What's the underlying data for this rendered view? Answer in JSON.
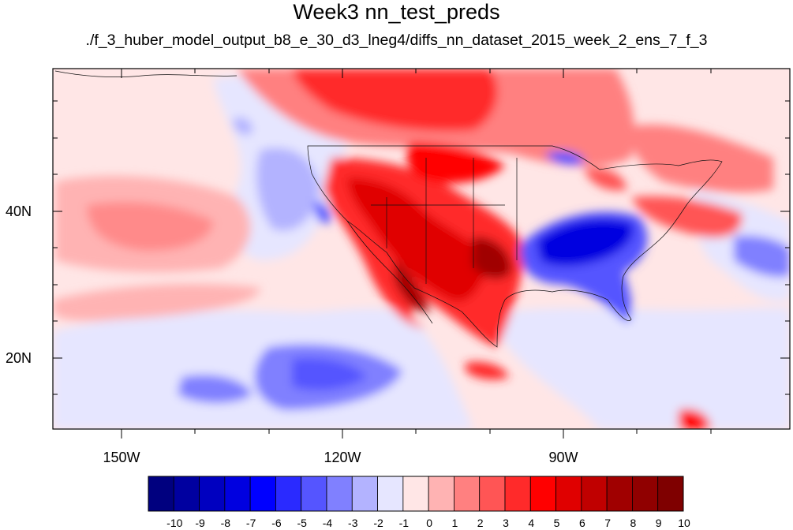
{
  "title": "Week3 nn_test_preds",
  "subtitle": "./f_3_huber_model_output_b8_e_30_d3_lneg4/diffs_nn_dataset_2015_week_2_ens_7_f_3",
  "map": {
    "lon_labels": [
      "150W",
      "120W",
      "90W"
    ],
    "lat_labels": [
      "40N",
      "20N"
    ]
  },
  "colorbar": {
    "ticks": [
      "-10",
      "-9",
      "-8",
      "-7",
      "-6",
      "-5",
      "-4",
      "-3",
      "-2",
      "-1",
      "0",
      "1",
      "2",
      "3",
      "4",
      "5",
      "6",
      "7",
      "8",
      "9",
      "10"
    ],
    "colors": [
      "#00007f",
      "#0000a0",
      "#0000c0",
      "#0000e0",
      "#0000ff",
      "#2a2aff",
      "#5555ff",
      "#8080ff",
      "#b3b3ff",
      "#e6e6ff",
      "#ffe6e6",
      "#ffb3b3",
      "#ff8080",
      "#ff5555",
      "#ff2a2a",
      "#ff0000",
      "#e00000",
      "#c00000",
      "#a00000",
      "#900000",
      "#7f0000"
    ]
  }
}
